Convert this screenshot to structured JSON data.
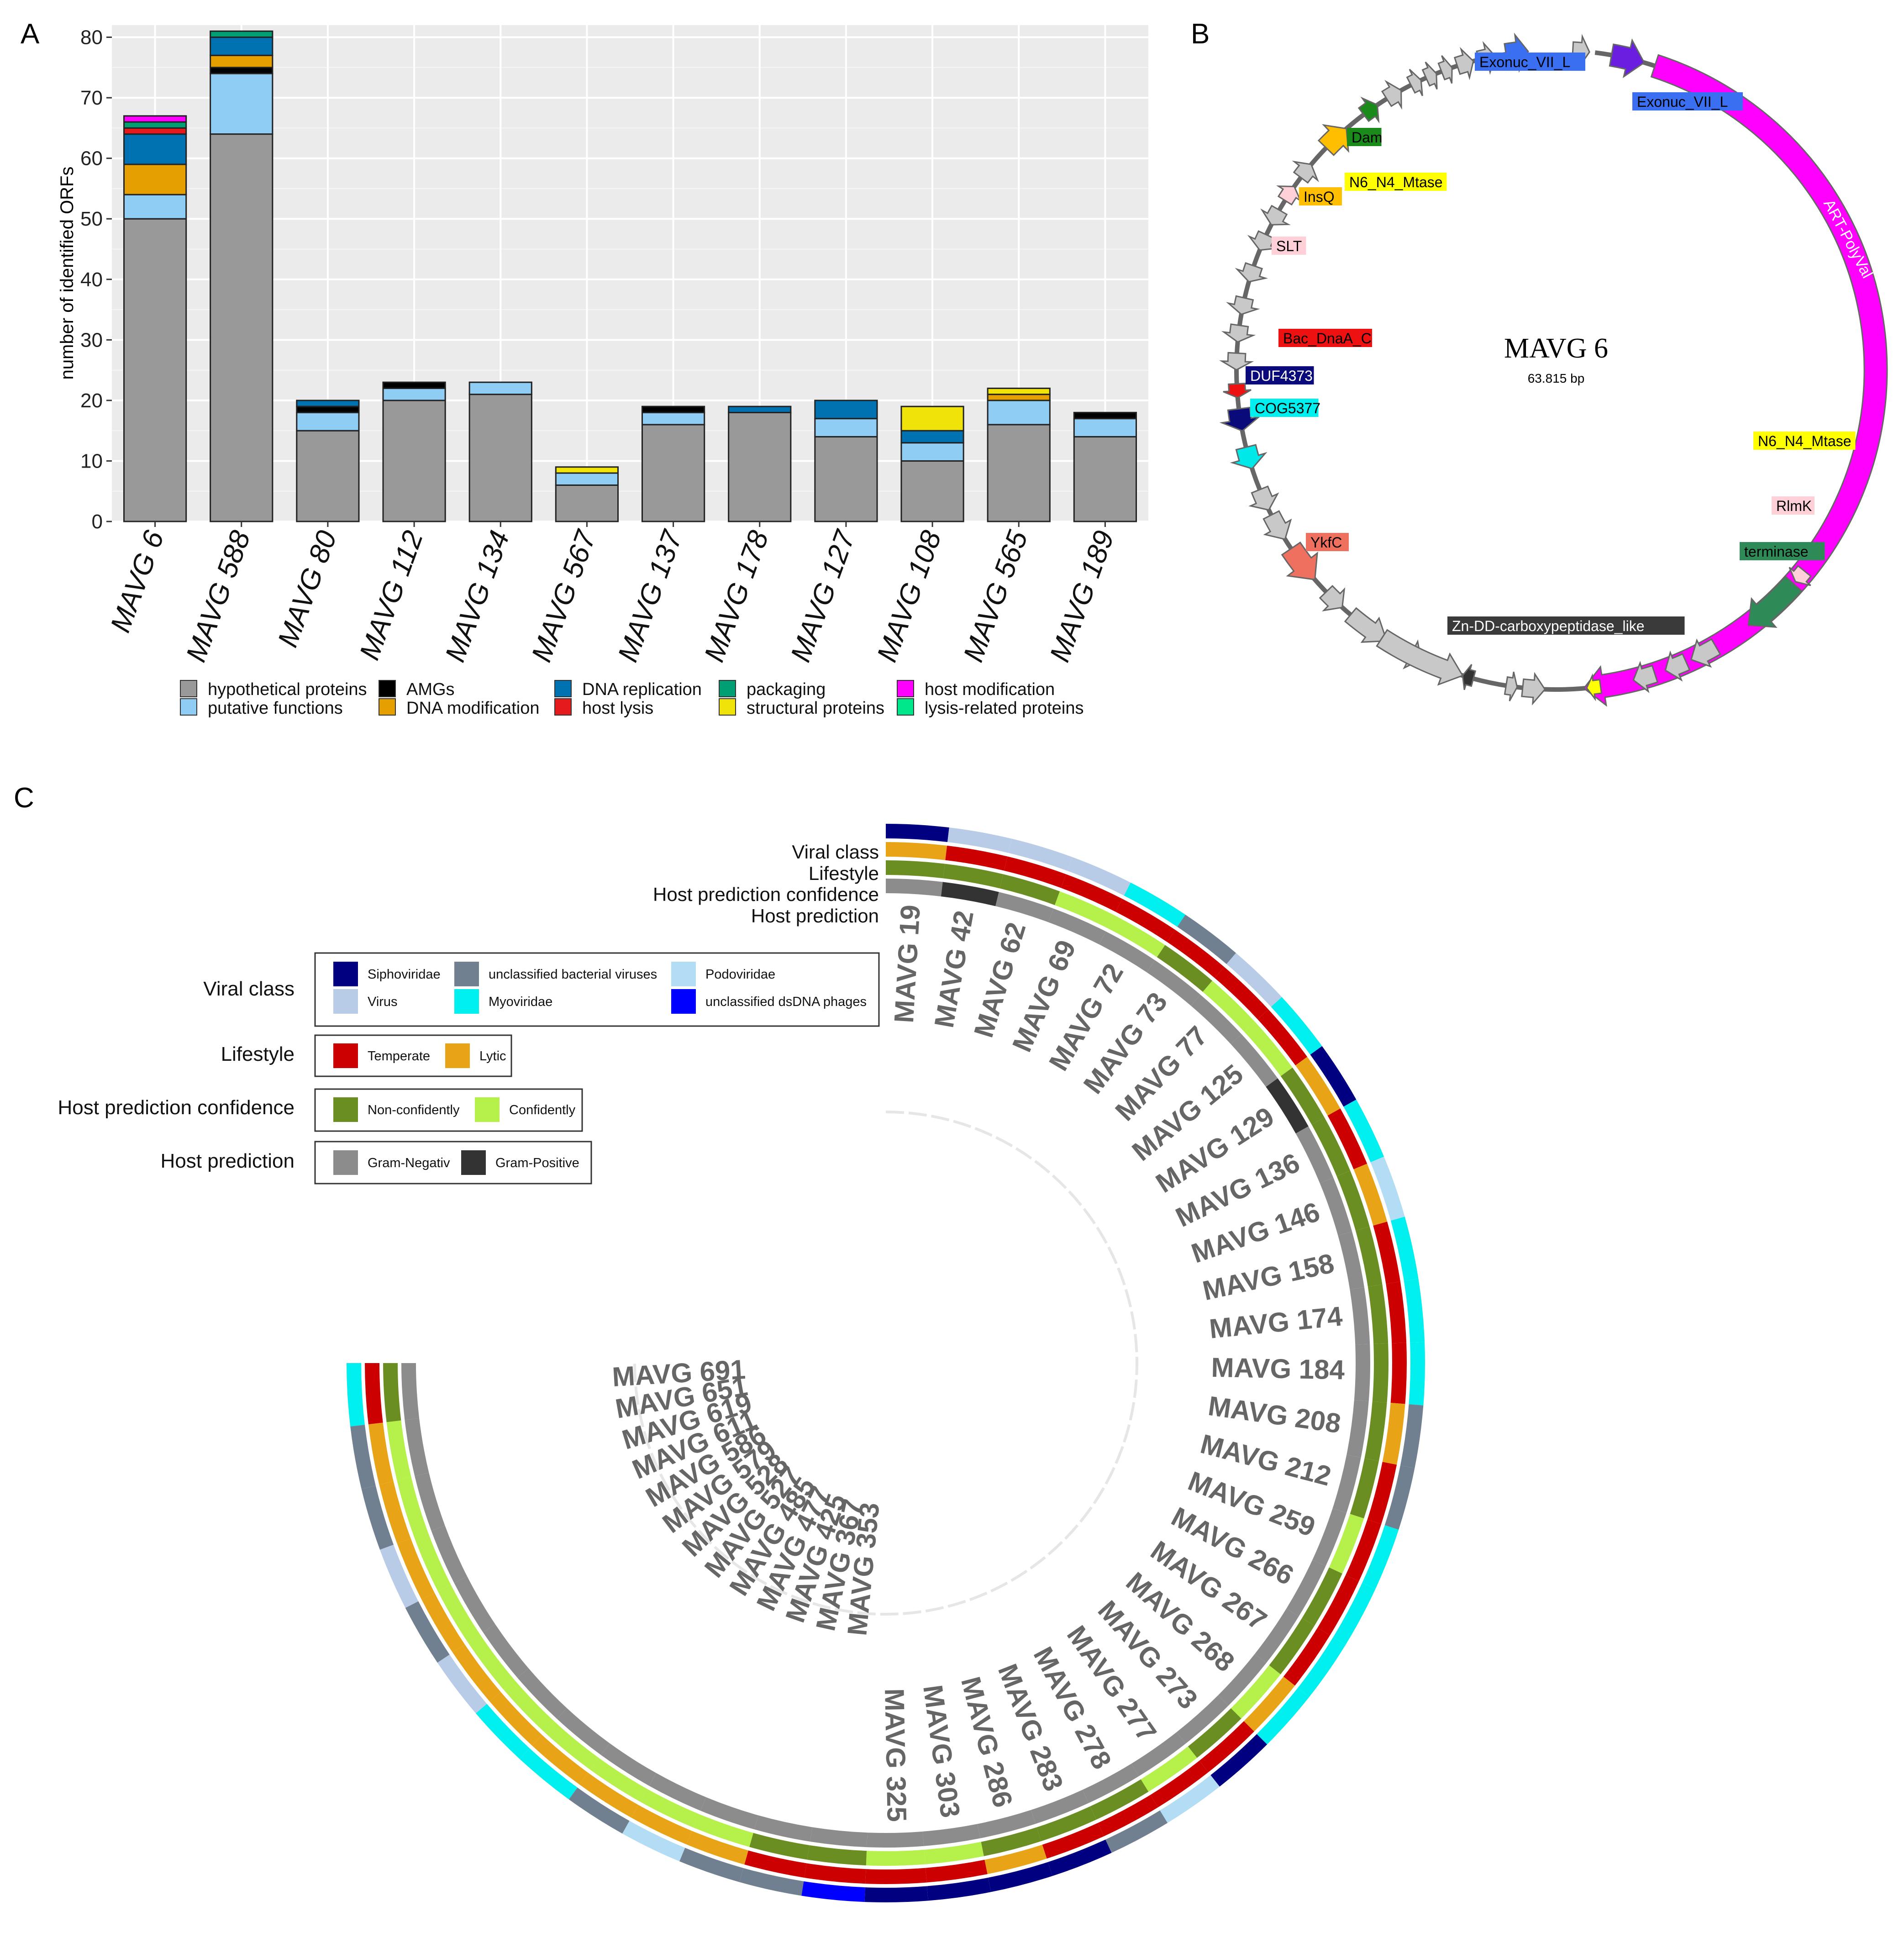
{
  "panels": {
    "a": "A",
    "b": "B",
    "c": "C"
  },
  "chart_data": [
    {
      "type": "bar",
      "stacked": true,
      "panel": "A",
      "ylabel": "number of identified ORFs",
      "xlabel": "",
      "ylim": [
        0,
        82
      ],
      "yticks": [
        0,
        10,
        20,
        30,
        40,
        50,
        60,
        70,
        80
      ],
      "categories": [
        "MAVG 6",
        "MAVG 588",
        "MAVG 80",
        "MAVG 112",
        "MAVG 134",
        "MAVG 567",
        "MAVG 137",
        "MAVG 178",
        "MAVG 127",
        "MAVG 108",
        "MAVG 565",
        "MAVG 189"
      ],
      "series": [
        {
          "name": "hypothetical proteins",
          "color": "#999999",
          "values": [
            50,
            64,
            15,
            20,
            21,
            6,
            16,
            18,
            14,
            10,
            16,
            14
          ]
        },
        {
          "name": "putative functions",
          "color": "#8fcdf5",
          "values": [
            4,
            10,
            3,
            2,
            2,
            2,
            2,
            0,
            3,
            3,
            4,
            3
          ]
        },
        {
          "name": "AMGs",
          "color": "#000000",
          "values": [
            0,
            1,
            1,
            1,
            0,
            0,
            1,
            0,
            0,
            0,
            0,
            1
          ]
        },
        {
          "name": "DNA modification",
          "color": "#e69f00",
          "values": [
            5,
            2,
            0,
            0,
            0,
            0,
            0,
            0,
            0,
            0,
            1,
            0
          ]
        },
        {
          "name": "DNA replication",
          "color": "#0072b2",
          "values": [
            5,
            3,
            1,
            0,
            0,
            0,
            0,
            1,
            3,
            2,
            0,
            0
          ]
        },
        {
          "name": "host lysis",
          "color": "#e41a1c",
          "values": [
            1,
            0,
            0,
            0,
            0,
            0,
            0,
            0,
            0,
            0,
            0,
            0
          ]
        },
        {
          "name": "packaging",
          "color": "#009e73",
          "values": [
            1,
            1,
            0,
            0,
            0,
            0,
            0,
            0,
            0,
            0,
            0,
            0
          ]
        },
        {
          "name": "structural proteins",
          "color": "#f0e30a",
          "values": [
            0,
            0,
            0,
            0,
            0,
            1,
            0,
            0,
            0,
            4,
            1,
            0
          ]
        },
        {
          "name": "host modification",
          "color": "#ff00ff",
          "values": [
            1,
            0,
            0,
            0,
            0,
            0,
            0,
            0,
            0,
            0,
            0,
            0
          ]
        },
        {
          "name": "lysis-related proteins",
          "color": "#00e68a",
          "values": [
            0,
            0,
            0,
            0,
            0,
            0,
            0,
            0,
            0,
            0,
            0,
            0
          ]
        }
      ],
      "legend_position": "bottom"
    },
    {
      "type": "genome-map",
      "panel": "B",
      "title": "MAVG 6",
      "subtitle": "63.815 bp",
      "features": [
        {
          "label": "Exonuc_VII_L",
          "color": "#3a6ff2",
          "text": "#000000"
        },
        {
          "label": "Exonuc_VII_L",
          "color": "#3a6ff2",
          "text": "#000000"
        },
        {
          "label": "ART-PolyVal",
          "color": "#ff00ff",
          "text": "#ffffff"
        },
        {
          "label": "Dam",
          "color": "#1a8a1a",
          "text": "#000000"
        },
        {
          "label": "N6_N4_Mtase",
          "color": "#ffff00",
          "text": "#000000"
        },
        {
          "label": "InsQ",
          "color": "#ffbf00",
          "text": "#000000"
        },
        {
          "label": "SLT",
          "color": "#ffd0d8",
          "text": "#000000"
        },
        {
          "label": "Bac_DnaA_C",
          "color": "#ee1111",
          "text": "#000000"
        },
        {
          "label": "DUF4373",
          "color": "#0a0a7a",
          "text": "#ffffff"
        },
        {
          "label": "COG5377",
          "color": "#00f0f0",
          "text": "#000000"
        },
        {
          "label": "N6_N4_Mtase",
          "color": "#ffff00",
          "text": "#000000"
        },
        {
          "label": "RlmK",
          "color": "#ffd0d8",
          "text": "#000000"
        },
        {
          "label": "terminase",
          "color": "#2e8b57",
          "text": "#000000"
        },
        {
          "label": "YkfC",
          "color": "#f07060",
          "text": "#000000"
        },
        {
          "label": "Zn-DD-carboxypeptidase_like",
          "color": "#3a3a3a",
          "text": "#ffffff"
        }
      ]
    },
    {
      "type": "circular-heatmap",
      "panel": "C",
      "track_labels": [
        "Viral class",
        "Lifestyle",
        "Host prediction confidence",
        "Host prediction"
      ],
      "legend": {
        "viral_class": [
          {
            "label": "Siphoviridae",
            "color": "#000080"
          },
          {
            "label": "unclassified bacterial viruses",
            "color": "#708090"
          },
          {
            "label": "Podoviridae",
            "color": "#b3dcf5"
          },
          {
            "label": "Virus",
            "color": "#b8cce8"
          },
          {
            "label": "Myoviridae",
            "color": "#00f0f0"
          },
          {
            "label": "unclassified dsDNA phages",
            "color": "#0000ff"
          }
        ],
        "lifestyle": [
          {
            "label": "Temperate",
            "color": "#cc0000"
          },
          {
            "label": "Lytic",
            "color": "#e8a317"
          }
        ],
        "host_prediction_confidence": [
          {
            "label": "Non-confidently",
            "color": "#6b8e23"
          },
          {
            "label": "Confidently",
            "color": "#b5f04b"
          }
        ],
        "host_prediction": [
          {
            "label": "Gram-Negativ",
            "color": "#8c8c8c"
          },
          {
            "label": "Gram-Positive",
            "color": "#333333"
          }
        ]
      },
      "genomes": [
        "MAVG 19",
        "MAVG 42",
        "MAVG 62",
        "MAVG 69",
        "MAVG 72",
        "MAVG 73",
        "MAVG 77",
        "MAVG 125",
        "MAVG 129",
        "MAVG 136",
        "MAVG 146",
        "MAVG 158",
        "MAVG 174",
        "MAVG 184",
        "MAVG 208",
        "MAVG 212",
        "MAVG 259",
        "MAVG 266",
        "MAVG 267",
        "MAVG 268",
        "MAVG 273",
        "MAVG 277",
        "MAVG 278",
        "MAVG 283",
        "MAVG 286",
        "MAVG 303",
        "MAVG 325",
        "MAVG 353",
        "MAVG 367",
        "MAVG 425",
        "MAVG 477",
        "MAVG 485",
        "MAVG 527",
        "MAVG 528",
        "MAVG 579",
        "MAVG 586",
        "MAVG 611",
        "MAVG 619",
        "MAVG 651",
        "MAVG 691"
      ],
      "viral_class": [
        "Siphoviridae",
        "Virus",
        "Virus",
        "Virus",
        "Myoviridae",
        "unclassified bacterial viruses",
        "Virus",
        "Myoviridae",
        "Siphoviridae",
        "Myoviridae",
        "Podoviridae",
        "Myoviridae",
        "Myoviridae",
        "Myoviridae",
        "unclassified bacterial viruses",
        "unclassified bacterial viruses",
        "Myoviridae",
        "Myoviridae",
        "Myoviridae",
        "Myoviridae",
        "Siphoviridae",
        "Podoviridae",
        "unclassified bacterial viruses",
        "Siphoviridae",
        "Siphoviridae",
        "Siphoviridae",
        "Siphoviridae",
        "unclassified dsDNA phages",
        "unclassified bacterial viruses",
        "unclassified bacterial viruses",
        "Podoviridae",
        "unclassified bacterial viruses",
        "Myoviridae",
        "Myoviridae",
        "Virus",
        "unclassified bacterial viruses",
        "Virus",
        "unclassified bacterial viruses",
        "unclassified bacterial viruses",
        "Myoviridae"
      ],
      "lifestyle": [
        "Lytic",
        "Temperate",
        "Temperate",
        "Temperate",
        "Temperate",
        "Temperate",
        "Temperate",
        "Temperate",
        "Lytic",
        "Temperate",
        "Lytic",
        "Temperate",
        "Temperate",
        "Temperate",
        "Lytic",
        "Temperate",
        "Temperate",
        "Temperate",
        "Temperate",
        "Lytic",
        "Temperate",
        "Temperate",
        "Temperate",
        "Temperate",
        "Lytic",
        "Temperate",
        "Temperate",
        "Temperate",
        "Temperate",
        "Lytic",
        "Lytic",
        "Lytic",
        "Lytic",
        "Lytic",
        "Lytic",
        "Lytic",
        "Lytic",
        "Lytic",
        "Lytic",
        "Temperate"
      ],
      "host_confidence": [
        "Non-confidently",
        "Non-confidently",
        "Non-confidently",
        "Confidently",
        "Confidently",
        "Non-confidently",
        "Confidently",
        "Confidently",
        "Non-confidently",
        "Non-confidently",
        "Non-confidently",
        "Non-confidently",
        "Non-confidently",
        "Non-confidently",
        "Non-confidently",
        "Non-confidently",
        "Confidently",
        "Non-confidently",
        "Non-confidently",
        "Confidently",
        "Non-confidently",
        "Confidently",
        "Non-confidently",
        "Non-confidently",
        "Non-confidently",
        "Confidently",
        "Confidently",
        "Non-confidently",
        "Non-confidently",
        "Confidently",
        "Confidently",
        "Confidently",
        "Confidently",
        "Confidently",
        "Confidently",
        "Confidently",
        "Confidently",
        "Confidently",
        "Confidently",
        "Non-confidently"
      ],
      "host_prediction": [
        "Gram-Negativ",
        "Gram-Positive",
        "Gram-Negativ",
        "Gram-Negativ",
        "Gram-Negativ",
        "Gram-Negativ",
        "Gram-Negativ",
        "Gram-Negativ",
        "Gram-Positive",
        "Gram-Negativ",
        "Gram-Negativ",
        "Gram-Negativ",
        "Gram-Negativ",
        "Gram-Negativ",
        "Gram-Negativ",
        "Gram-Negativ",
        "Gram-Negativ",
        "Gram-Negativ",
        "Gram-Negativ",
        "Gram-Negativ",
        "Gram-Negativ",
        "Gram-Negativ",
        "Gram-Negativ",
        "Gram-Negativ",
        "Gram-Negativ",
        "Gram-Negativ",
        "Gram-Negativ",
        "Gram-Negativ",
        "Gram-Negativ",
        "Gram-Negativ",
        "Gram-Negativ",
        "Gram-Negativ",
        "Gram-Negativ",
        "Gram-Negativ",
        "Gram-Negativ",
        "Gram-Negativ",
        "Gram-Negativ",
        "Gram-Negativ",
        "Gram-Negativ",
        "Gram-Negativ"
      ]
    }
  ]
}
